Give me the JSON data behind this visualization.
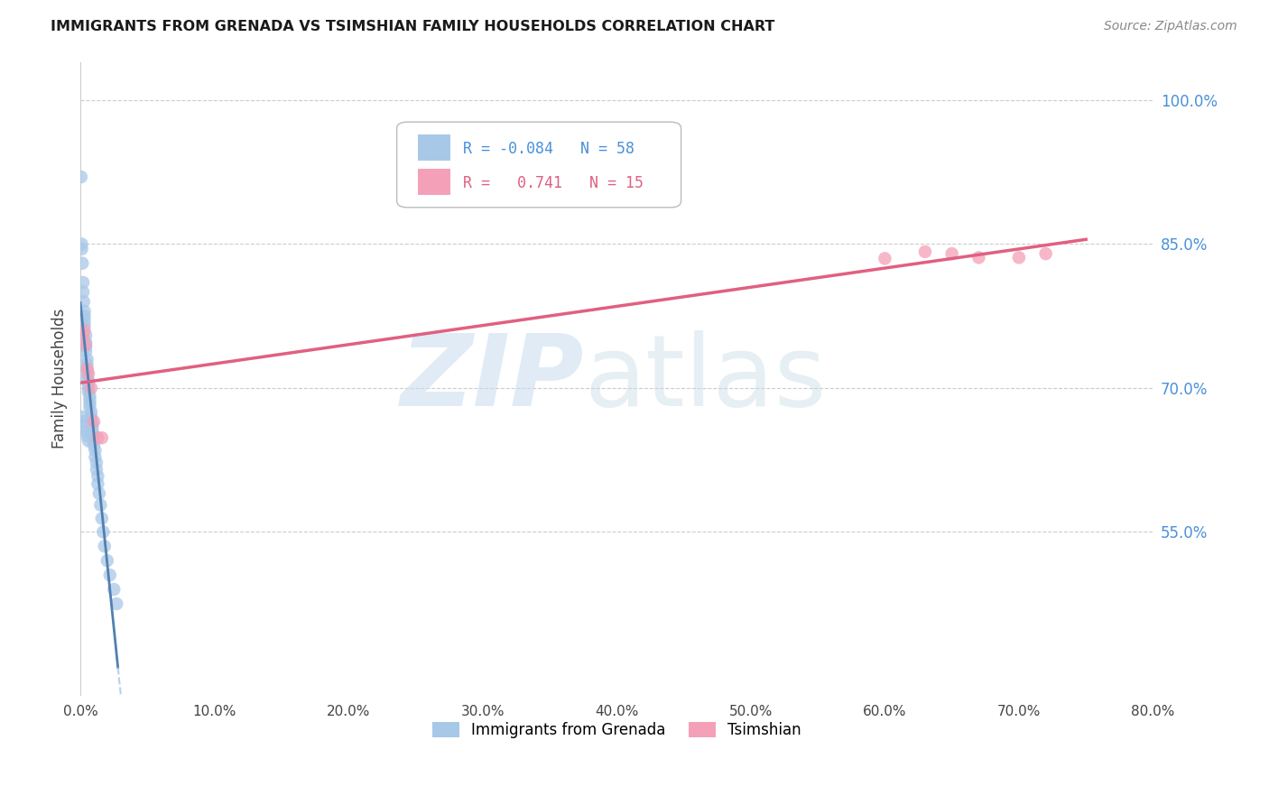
{
  "title": "IMMIGRANTS FROM GRENADA VS TSIMSHIAN FAMILY HOUSEHOLDS CORRELATION CHART",
  "source": "Source: ZipAtlas.com",
  "ylabel": "Family Households",
  "r_blue": -0.084,
  "n_blue": 58,
  "r_pink": 0.741,
  "n_pink": 15,
  "blue_color": "#a8c8e8",
  "pink_color": "#f4a0b8",
  "blue_line_color": "#5080b0",
  "pink_line_color": "#e06080",
  "xlim": [
    0.0,
    0.8
  ],
  "ylim": [
    0.38,
    1.04
  ],
  "yticks": [
    0.55,
    0.7,
    0.85,
    1.0
  ],
  "xticks": [
    0.0,
    0.1,
    0.2,
    0.3,
    0.4,
    0.5,
    0.6,
    0.7,
    0.8
  ],
  "blue_x": [
    0.0005,
    0.001,
    0.001,
    0.0015,
    0.002,
    0.002,
    0.0025,
    0.003,
    0.003,
    0.003,
    0.003,
    0.004,
    0.004,
    0.004,
    0.004,
    0.005,
    0.005,
    0.005,
    0.005,
    0.005,
    0.006,
    0.006,
    0.006,
    0.006,
    0.007,
    0.007,
    0.007,
    0.007,
    0.008,
    0.008,
    0.008,
    0.009,
    0.009,
    0.009,
    0.01,
    0.01,
    0.01,
    0.011,
    0.011,
    0.012,
    0.012,
    0.013,
    0.013,
    0.014,
    0.015,
    0.016,
    0.017,
    0.018,
    0.02,
    0.022,
    0.025,
    0.027,
    0.001,
    0.002,
    0.003,
    0.004,
    0.005,
    0.006
  ],
  "blue_y": [
    0.92,
    0.85,
    0.845,
    0.83,
    0.81,
    0.8,
    0.79,
    0.78,
    0.775,
    0.77,
    0.765,
    0.755,
    0.748,
    0.743,
    0.738,
    0.73,
    0.725,
    0.72,
    0.715,
    0.71,
    0.708,
    0.704,
    0.7,
    0.696,
    0.692,
    0.688,
    0.684,
    0.68,
    0.675,
    0.67,
    0.666,
    0.662,
    0.658,
    0.654,
    0.65,
    0.645,
    0.64,
    0.635,
    0.628,
    0.622,
    0.615,
    0.608,
    0.6,
    0.59,
    0.578,
    0.564,
    0.55,
    0.535,
    0.52,
    0.505,
    0.49,
    0.475,
    0.67,
    0.665,
    0.66,
    0.655,
    0.65,
    0.645
  ],
  "pink_x": [
    0.002,
    0.003,
    0.004,
    0.005,
    0.006,
    0.008,
    0.01,
    0.013,
    0.016,
    0.6,
    0.63,
    0.65,
    0.67,
    0.7,
    0.72
  ],
  "pink_y": [
    0.755,
    0.76,
    0.745,
    0.72,
    0.715,
    0.7,
    0.665,
    0.648,
    0.648,
    0.835,
    0.842,
    0.84,
    0.836,
    0.836,
    0.84
  ],
  "blue_trend_x0": 0.0,
  "blue_trend_x1": 0.8,
  "pink_trend_x0": 0.0,
  "pink_trend_x1": 0.75
}
